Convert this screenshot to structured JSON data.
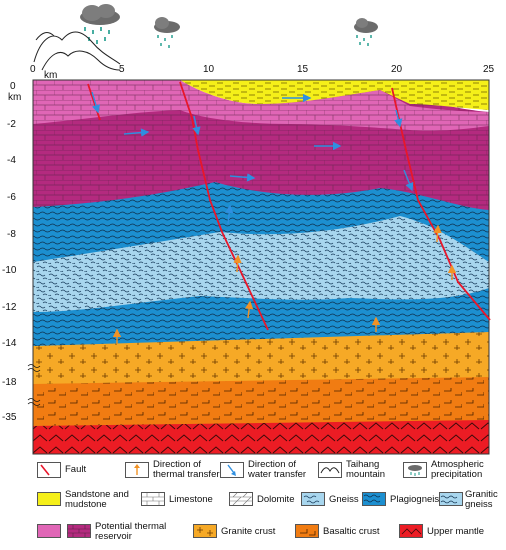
{
  "x_axis": {
    "unit": "km",
    "ticks": [
      "0",
      "5",
      "10",
      "15",
      "20",
      "25"
    ]
  },
  "y_axis": {
    "unit": "km",
    "ticks": [
      "0",
      "-2",
      "-4",
      "-6",
      "-8",
      "-10",
      "-12",
      "-14",
      "-18",
      "-35"
    ]
  },
  "colors": {
    "sandstone": "#f5ef19",
    "potential_reservoir_light": "#e066b6",
    "potential_reservoir_dark": "#b42a7f",
    "plagiogneiss": "#1c8fd0",
    "granitic_gneiss": "#a8d6ee",
    "granite_crust": "#f6a926",
    "basaltic_crust": "#f17c12",
    "upper_mantle": "#ec1c24",
    "fault": "#e8162a",
    "thermal_arrow": "#f29224",
    "water_arrow": "#2f8fe0"
  },
  "legend": {
    "row1": [
      {
        "icon": "fault-icon",
        "label": "Fault"
      },
      {
        "icon": "thermal-transfer-icon",
        "label": "Direction of\nthermal transfer"
      },
      {
        "icon": "water-transfer-icon",
        "label": "Direction of\nwater transfer"
      },
      {
        "icon": "mountain-icon",
        "label": "Taihang\nmountain"
      },
      {
        "icon": "precipitation-icon",
        "label": "Atmospheric\nprecipitation"
      }
    ],
    "row2": [
      {
        "label": "Sandstone and\nmudstone"
      },
      {
        "label": "Limestone"
      },
      {
        "label": "Dolomite"
      },
      {
        "label": "Gneiss"
      },
      {
        "label": "Plagiogneiss"
      },
      {
        "label": "Granitic\ngneiss"
      }
    ],
    "row3": [
      {
        "label": "Potential thermal\nreservoir"
      },
      {
        "label": "Granite crust"
      },
      {
        "label": "Basaltic crust"
      },
      {
        "label": "Upper mantle"
      }
    ]
  }
}
